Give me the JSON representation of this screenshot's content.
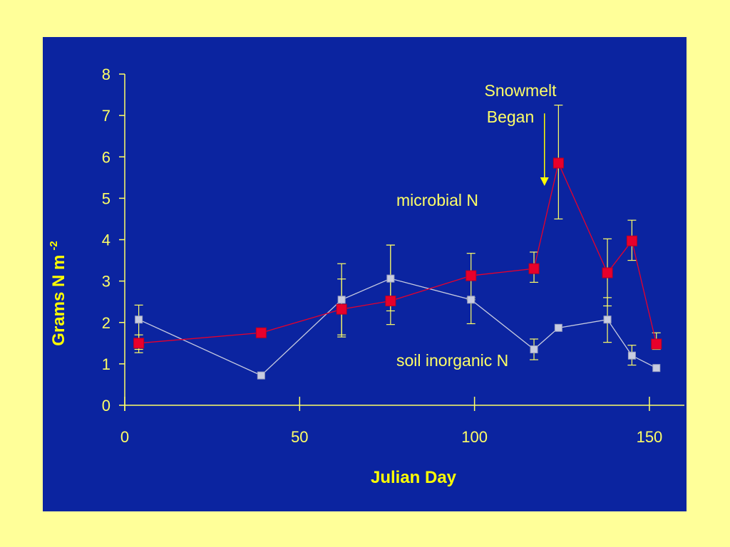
{
  "colors": {
    "page_background": "#ffff99",
    "plot_background": "#0b24a0",
    "axis": "#ffff66",
    "microbial": "#e8002b",
    "soil": "#c8cce0",
    "annotation_arrow": "#ffff00"
  },
  "chart_data": {
    "type": "line",
    "xlabel": "Julian Day",
    "ylabel": "Grams N m",
    "ylabel_superscript": "-2",
    "xlim": [
      0,
      160
    ],
    "ylim": [
      0,
      8
    ],
    "xticks": [
      0,
      50,
      100,
      150
    ],
    "yticks": [
      0,
      1,
      2,
      3,
      4,
      5,
      6,
      7,
      8
    ],
    "grid": false,
    "series": [
      {
        "name": "microbial N",
        "marker": "square-large",
        "x": [
          4,
          39,
          62,
          76,
          99,
          117,
          124,
          138,
          145,
          152
        ],
        "y": [
          1.5,
          1.75,
          2.32,
          2.52,
          3.13,
          3.3,
          5.85,
          3.2,
          3.97,
          1.48
        ],
        "error_low": [
          1.27,
          1.7,
          1.65,
          1.95,
          2.6,
          2.97,
          4.5,
          2.4,
          3.5,
          1.35
        ],
        "error_high": [
          1.7,
          1.8,
          3.05,
          3.87,
          3.67,
          3.7,
          7.25,
          4.02,
          4.47,
          1.75
        ]
      },
      {
        "name": "soil inorganic N",
        "marker": "square-small",
        "x": [
          4,
          39,
          62,
          76,
          99,
          117,
          124,
          138,
          145,
          152
        ],
        "y": [
          2.07,
          0.72,
          2.55,
          3.06,
          2.55,
          1.35,
          1.87,
          2.07,
          1.2,
          0.9
        ],
        "error_low": [
          1.35,
          0.72,
          1.7,
          2.28,
          1.97,
          1.1,
          1.87,
          1.52,
          0.97,
          0.9
        ],
        "error_high": [
          2.42,
          0.72,
          3.42,
          3.87,
          2.55,
          1.6,
          1.87,
          2.6,
          1.45,
          0.9
        ]
      }
    ],
    "annotations": {
      "snowmelt_line1": "Snowmelt",
      "snowmelt_line2": "Began",
      "snowmelt_arrow_x": 120,
      "snowmelt_arrow_y_top": 7.05,
      "snowmelt_arrow_y_bottom": 5.3,
      "microbial_label": "microbial N",
      "soil_label": "soil inorganic N"
    }
  }
}
